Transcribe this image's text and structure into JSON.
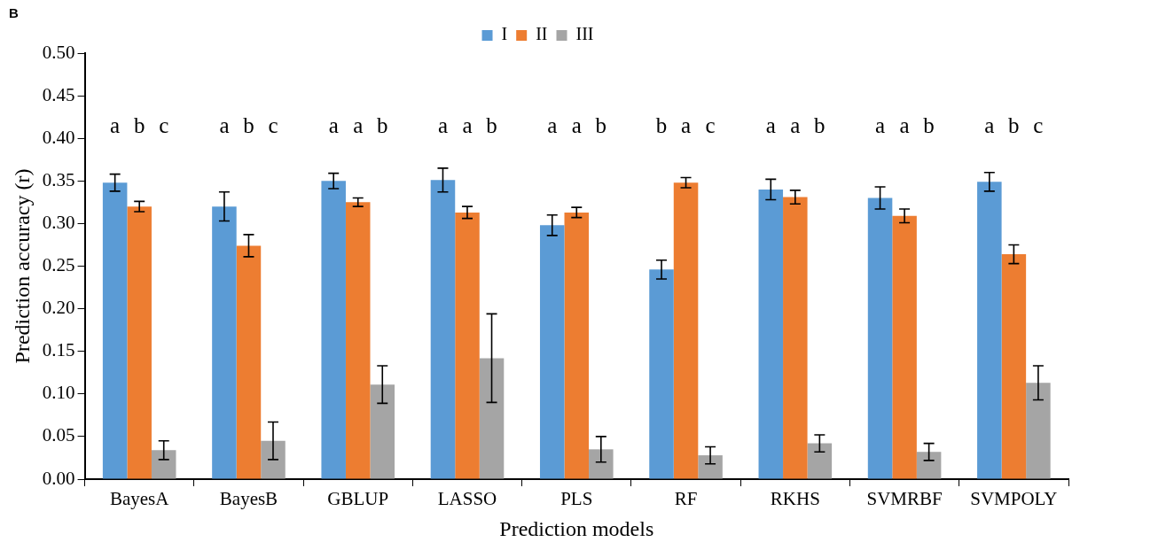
{
  "chart_data": {
    "type": "bar",
    "xlabel": "Prediction models",
    "ylabel": "Prediction accuracy (r)",
    "categories": [
      "BayesA",
      "BayesB",
      "GBLUP",
      "LASSO",
      "PLS",
      "RF",
      "RKHS",
      "SVMRBF",
      "SVMPOLY"
    ],
    "series": [
      {
        "name": "I",
        "color": "#5b9bd5",
        "values": [
          0.348,
          0.32,
          0.35,
          0.351,
          0.298,
          0.246,
          0.34,
          0.33,
          0.349
        ],
        "errors": [
          0.01,
          0.017,
          0.009,
          0.014,
          0.012,
          0.011,
          0.012,
          0.013,
          0.011
        ]
      },
      {
        "name": "II",
        "color": "#ed7d31",
        "values": [
          0.32,
          0.274,
          0.325,
          0.313,
          0.313,
          0.348,
          0.331,
          0.309,
          0.264
        ],
        "errors": [
          0.006,
          0.013,
          0.005,
          0.007,
          0.006,
          0.006,
          0.008,
          0.008,
          0.011
        ]
      },
      {
        "name": "III",
        "color": "#a5a5a5",
        "values": [
          0.034,
          0.045,
          0.111,
          0.142,
          0.035,
          0.028,
          0.042,
          0.032,
          0.113
        ],
        "errors": [
          0.011,
          0.022,
          0.022,
          0.052,
          0.015,
          0.01,
          0.01,
          0.01,
          0.02
        ]
      }
    ],
    "ylim": [
      0,
      0.5
    ],
    "yticks": [
      {
        "value": 0,
        "label": "0.00"
      },
      {
        "value": 0.05,
        "label": "0.05"
      },
      {
        "value": 0.1,
        "label": "0.10"
      },
      {
        "value": 0.15,
        "label": "0.15"
      },
      {
        "value": 0.2,
        "label": "0.20"
      },
      {
        "value": 0.25,
        "label": "0.25"
      },
      {
        "value": 0.3,
        "label": "0.30"
      },
      {
        "value": 0.35,
        "label": "0.35"
      },
      {
        "value": 0.4,
        "label": "0.40"
      },
      {
        "value": 0.45,
        "label": "0.45"
      },
      {
        "value": 0.5,
        "label": "0.50"
      }
    ],
    "grid": false,
    "legend": "top",
    "annotations": [
      "B",
      "a",
      "b",
      "c",
      "a",
      "b",
      "c",
      "a",
      "a",
      "b",
      "a",
      "a",
      "b",
      "a",
      "a",
      "b",
      "b",
      "a",
      "c",
      "a",
      "a",
      "b",
      "a",
      "a",
      "b",
      "a",
      "b",
      "c"
    ]
  }
}
